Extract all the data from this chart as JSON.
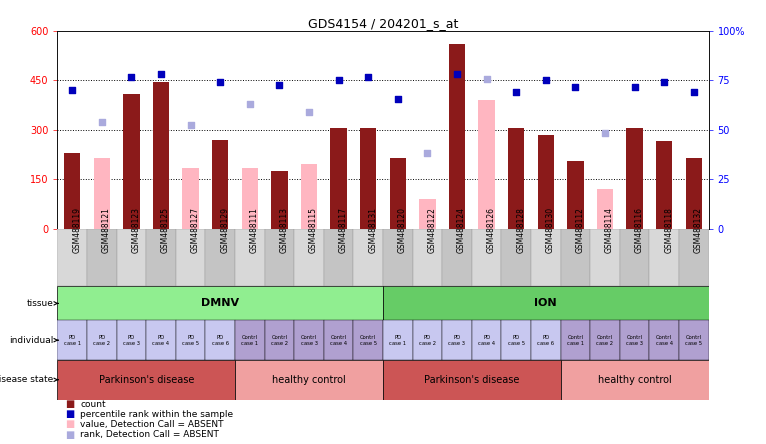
{
  "title": "GDS4154 / 204201_s_at",
  "samples": [
    "GSM488119",
    "GSM488121",
    "GSM488123",
    "GSM488125",
    "GSM488127",
    "GSM488129",
    "GSM488111",
    "GSM488113",
    "GSM488115",
    "GSM488117",
    "GSM488131",
    "GSM488120",
    "GSM488122",
    "GSM488124",
    "GSM488126",
    "GSM488128",
    "GSM488130",
    "GSM488112",
    "GSM488114",
    "GSM488116",
    "GSM488118",
    "GSM488132"
  ],
  "count_values": [
    230,
    null,
    410,
    445,
    null,
    270,
    null,
    175,
    null,
    305,
    305,
    215,
    null,
    560,
    null,
    305,
    285,
    205,
    null,
    305,
    265,
    215
  ],
  "value_absent": [
    null,
    215,
    null,
    null,
    185,
    null,
    185,
    null,
    195,
    null,
    null,
    null,
    90,
    null,
    390,
    null,
    null,
    null,
    120,
    null,
    null,
    null
  ],
  "rank_dark": [
    420,
    null,
    460,
    470,
    null,
    445,
    null,
    435,
    null,
    450,
    460,
    395,
    null,
    470,
    null,
    415,
    450,
    430,
    null,
    430,
    445,
    415
  ],
  "rank_absent": [
    null,
    325,
    null,
    null,
    315,
    null,
    380,
    null,
    355,
    null,
    null,
    null,
    230,
    null,
    455,
    null,
    null,
    null,
    290,
    null,
    null,
    null
  ],
  "bar_color_dark": "#8B1A1A",
  "bar_color_light": "#FFB6C1",
  "dot_color_dark": "#0000BB",
  "dot_color_light": "#AAAADD",
  "ylim_left": [
    0,
    600
  ],
  "ylim_right": [
    0,
    100
  ],
  "yticks_left": [
    0,
    150,
    300,
    450,
    600
  ],
  "ytick_labels_left": [
    "0",
    "150",
    "300",
    "450",
    "600"
  ],
  "yticks_right": [
    0,
    25,
    50,
    75,
    100
  ],
  "ytick_labels_right": [
    "0",
    "25",
    "50",
    "75",
    "100%"
  ],
  "hlines": [
    150,
    300,
    450
  ],
  "tissue_groups": [
    {
      "label": "DMNV",
      "start": 0,
      "end": 10,
      "color": "#90EE90"
    },
    {
      "label": "ION",
      "start": 11,
      "end": 21,
      "color": "#66CC66"
    }
  ],
  "individual_labels": [
    "PD\ncase 1",
    "PD\ncase 2",
    "PD\ncase 3",
    "PD\ncase 4",
    "PD\ncase 5",
    "PD\ncase 6",
    "Contrl\ncase 1",
    "Contrl\ncase 2",
    "Contrl\ncase 3",
    "Contrl\ncase 4",
    "Contrl\ncase 5",
    "PD\ncase 1",
    "PD\ncase 2",
    "PD\ncase 3",
    "PD\ncase 4",
    "PD\ncase 5",
    "PD\ncase 6",
    "Contrl\ncase 1",
    "Contrl\ncase 2",
    "Contrl\ncase 3",
    "Contrl\ncase 4",
    "Contrl\ncase 5"
  ],
  "individual_colors": [
    "#C8C8F0",
    "#C8C8F0",
    "#C8C8F0",
    "#C8C8F0",
    "#C8C8F0",
    "#C8C8F0",
    "#B0A0D0",
    "#B0A0D0",
    "#B0A0D0",
    "#B0A0D0",
    "#B0A0D0",
    "#C8C8F0",
    "#C8C8F0",
    "#C8C8F0",
    "#C8C8F0",
    "#C8C8F0",
    "#C8C8F0",
    "#B0A0D0",
    "#B0A0D0",
    "#B0A0D0",
    "#B0A0D0",
    "#B0A0D0"
  ],
  "disease_groups": [
    {
      "label": "Parkinson's disease",
      "start": 0,
      "end": 5,
      "color": "#CC5555"
    },
    {
      "label": "healthy control",
      "start": 6,
      "end": 10,
      "color": "#F0A0A0"
    },
    {
      "label": "Parkinson's disease",
      "start": 11,
      "end": 16,
      "color": "#CC5555"
    },
    {
      "label": "healthy control",
      "start": 17,
      "end": 21,
      "color": "#F0A0A0"
    }
  ],
  "row_labels": [
    "tissue",
    "individual",
    "disease state"
  ],
  "legend_items": [
    {
      "label": "count",
      "color": "#8B1A1A"
    },
    {
      "label": "percentile rank within the sample",
      "color": "#0000BB"
    },
    {
      "label": "value, Detection Call = ABSENT",
      "color": "#FFB6C1"
    },
    {
      "label": "rank, Detection Call = ABSENT",
      "color": "#AAAADD"
    }
  ],
  "n_samples": 22,
  "xticklabel_bg_even": "#D8D8D8",
  "xticklabel_bg_odd": "#C4C4C4"
}
